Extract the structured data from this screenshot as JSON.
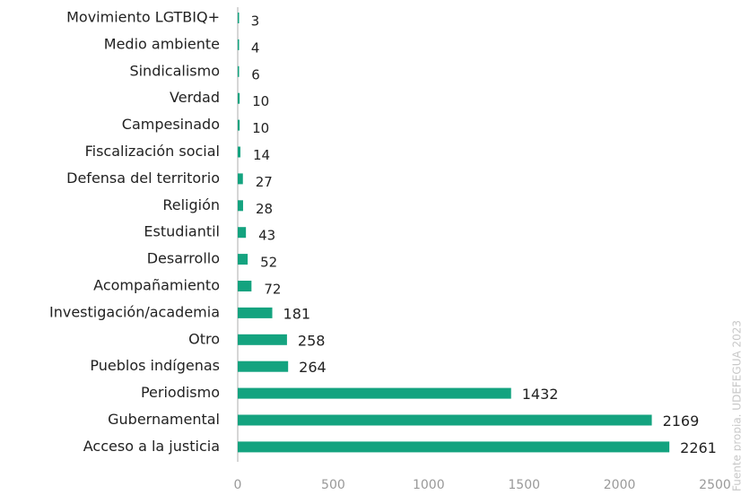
{
  "chart_data": {
    "type": "bar",
    "orientation": "horizontal",
    "categories": [
      "Movimiento LGTBIQ+",
      "Medio ambiente",
      "Sindicalismo",
      "Verdad",
      "Campesinado",
      "Fiscalización social",
      "Defensa del territorio",
      "Religión",
      "Estudiantil",
      "Desarrollo",
      "Acompañamiento",
      "Investigación/academia",
      "Otro",
      "Pueblos indígenas",
      "Periodismo",
      "Gubernamental",
      "Acceso a la justicia"
    ],
    "values": [
      3,
      4,
      6,
      10,
      10,
      14,
      27,
      28,
      43,
      52,
      72,
      181,
      258,
      264,
      1432,
      2169,
      2261
    ],
    "color": "#14a37f",
    "xlim": [
      0,
      2500
    ],
    "xticks": [
      0,
      500,
      1000,
      1500,
      2000,
      2500
    ],
    "annotation": "Fuente propia. UDEFEGUA 2023"
  }
}
